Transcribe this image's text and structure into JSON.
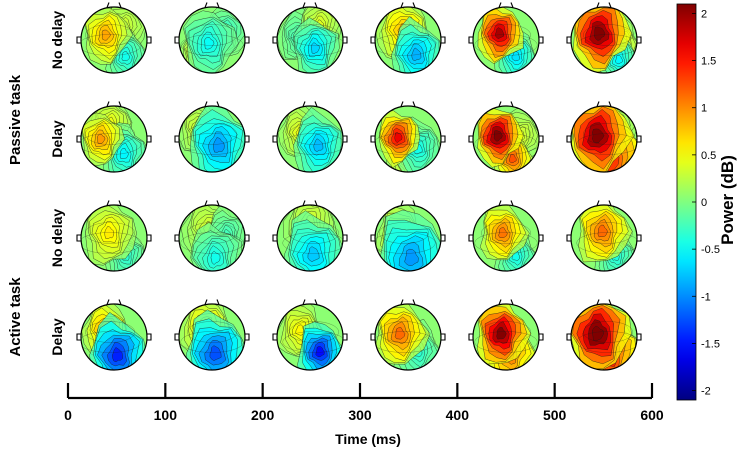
{
  "chart_data": {
    "type": "heatmap",
    "subtype": "scalp-topography-grid",
    "group_labels": [
      "Passive task",
      "Active task"
    ],
    "row_labels": [
      "No delay",
      "Delay",
      "No delay",
      "Delay"
    ],
    "row_groups": [
      0,
      0,
      1,
      1
    ],
    "time_windows_ms": [
      [
        0,
        100
      ],
      [
        100,
        200
      ],
      [
        200,
        300
      ],
      [
        300,
        400
      ],
      [
        400,
        500
      ],
      [
        500,
        600
      ]
    ],
    "time_axis": {
      "label": "Time (ms)",
      "ticks": [
        0,
        100,
        200,
        300,
        400,
        500,
        600
      ],
      "tick_labels": [
        "0",
        "100",
        "200",
        "300",
        "400",
        "500",
        "600"
      ],
      "range": [
        0,
        600
      ]
    },
    "colorbar": {
      "label": "Power (dB)",
      "range": [
        -2.1,
        2.1
      ],
      "ticks": [
        2,
        1.5,
        1,
        0.5,
        0,
        -0.5,
        -1,
        -1.5,
        -2
      ],
      "tick_labels": [
        "2",
        "1.5",
        "1",
        "0.5",
        "0",
        "-0.5",
        "-1",
        "-1.5",
        "-2"
      ],
      "colormap": "jet"
    },
    "maps": [
      [
        {
          "blobs": [
            {
              "u": -0.25,
              "v": -0.15,
              "s": 0.22,
              "a": 0.85
            },
            {
              "u": 0.35,
              "v": 0.5,
              "s": 0.2,
              "a": -0.5
            },
            {
              "u": 0.3,
              "v": -0.4,
              "s": 0.2,
              "a": 0.3
            }
          ]
        },
        {
          "blobs": [
            {
              "u": -0.1,
              "v": 0.1,
              "s": 0.25,
              "a": -0.55
            },
            {
              "u": 0.4,
              "v": -0.2,
              "s": 0.2,
              "a": -0.4
            },
            {
              "u": -0.4,
              "v": 0.5,
              "s": 0.2,
              "a": 0.35
            }
          ]
        },
        {
          "blobs": [
            {
              "u": 0.15,
              "v": 0.25,
              "s": 0.22,
              "a": -0.75
            },
            {
              "u": -0.35,
              "v": -0.1,
              "s": 0.2,
              "a": -0.3
            },
            {
              "u": 0.3,
              "v": -0.45,
              "s": 0.2,
              "a": 0.35
            }
          ]
        },
        {
          "blobs": [
            {
              "u": -0.15,
              "v": -0.3,
              "s": 0.25,
              "a": 0.75
            },
            {
              "u": 0.25,
              "v": 0.45,
              "s": 0.25,
              "a": -0.9
            }
          ]
        },
        {
          "blobs": [
            {
              "u": -0.2,
              "v": -0.2,
              "s": 0.22,
              "a": 1.9
            },
            {
              "u": 0.3,
              "v": 0.5,
              "s": 0.2,
              "a": -0.7
            }
          ]
        },
        {
          "blobs": [
            {
              "u": -0.15,
              "v": -0.2,
              "s": 0.28,
              "a": 2.2
            },
            {
              "u": 0.45,
              "v": 0.15,
              "s": 0.2,
              "a": 0.45
            },
            {
              "u": 0.45,
              "v": 0.6,
              "s": 0.18,
              "a": -0.6
            }
          ]
        }
      ],
      [
        {
          "blobs": [
            {
              "u": -0.4,
              "v": 0.0,
              "s": 0.2,
              "a": 0.9
            },
            {
              "u": -0.1,
              "v": -0.5,
              "s": 0.2,
              "a": 0.4
            },
            {
              "u": 0.3,
              "v": 0.45,
              "s": 0.22,
              "a": -0.6
            }
          ]
        },
        {
          "blobs": [
            {
              "u": 0.2,
              "v": 0.2,
              "s": 0.3,
              "a": -1.0
            },
            {
              "u": -0.4,
              "v": -0.35,
              "s": 0.2,
              "a": 0.3
            }
          ]
        },
        {
          "blobs": [
            {
              "u": 0.25,
              "v": 0.2,
              "s": 0.25,
              "a": -0.85
            },
            {
              "u": -0.3,
              "v": -0.2,
              "s": 0.2,
              "a": 0.4
            }
          ]
        },
        {
          "blobs": [
            {
              "u": -0.3,
              "v": -0.05,
              "s": 0.2,
              "a": 1.6
            },
            {
              "u": 0.3,
              "v": 0.3,
              "s": 0.22,
              "a": -0.5
            },
            {
              "u": 0.0,
              "v": 0.65,
              "s": 0.2,
              "a": 0.4
            }
          ]
        },
        {
          "blobs": [
            {
              "u": -0.25,
              "v": -0.1,
              "s": 0.22,
              "a": 2.2
            },
            {
              "u": 0.2,
              "v": 0.6,
              "s": 0.18,
              "a": 1.2
            },
            {
              "u": 0.45,
              "v": -0.1,
              "s": 0.2,
              "a": 0.3
            }
          ]
        },
        {
          "blobs": [
            {
              "u": -0.2,
              "v": -0.1,
              "s": 0.3,
              "a": 2.2
            },
            {
              "u": 0.1,
              "v": 0.55,
              "s": 0.35,
              "a": 1.5
            },
            {
              "u": 0.4,
              "v": -0.4,
              "s": 0.2,
              "a": 0.2
            }
          ]
        }
      ],
      [
        {
          "blobs": [
            {
              "u": -0.15,
              "v": -0.15,
              "s": 0.25,
              "a": 0.55
            },
            {
              "u": 0.35,
              "v": 0.55,
              "s": 0.2,
              "a": -0.4
            }
          ]
        },
        {
          "blobs": [
            {
              "u": -0.1,
              "v": -0.3,
              "s": 0.25,
              "a": 0.3
            },
            {
              "u": 0.1,
              "v": 0.6,
              "s": 0.25,
              "a": -0.5
            },
            {
              "u": 0.45,
              "v": -0.1,
              "s": 0.2,
              "a": -0.3
            }
          ]
        },
        {
          "blobs": [
            {
              "u": 0.0,
              "v": -0.5,
              "s": 0.25,
              "a": 0.3
            },
            {
              "u": 0.1,
              "v": 0.5,
              "s": 0.3,
              "a": -0.8
            }
          ]
        },
        {
          "blobs": [
            {
              "u": -0.25,
              "v": -0.15,
              "s": 0.22,
              "a": 0.5
            },
            {
              "u": 0.1,
              "v": 0.6,
              "s": 0.35,
              "a": -1.0
            }
          ]
        },
        {
          "blobs": [
            {
              "u": -0.1,
              "v": -0.15,
              "s": 0.22,
              "a": 1.05
            },
            {
              "u": 0.3,
              "v": 0.55,
              "s": 0.2,
              "a": -0.5
            }
          ]
        },
        {
          "blobs": [
            {
              "u": -0.05,
              "v": -0.2,
              "s": 0.25,
              "a": 1.1
            },
            {
              "u": 0.35,
              "v": 0.55,
              "s": 0.2,
              "a": -0.45
            }
          ]
        }
      ],
      [
        {
          "blobs": [
            {
              "u": -0.25,
              "v": -0.2,
              "s": 0.22,
              "a": 0.9
            },
            {
              "u": 0.1,
              "v": 0.55,
              "s": 0.28,
              "a": -1.5
            }
          ]
        },
        {
          "blobs": [
            {
              "u": -0.2,
              "v": -0.3,
              "s": 0.25,
              "a": 0.6
            },
            {
              "u": 0.1,
              "v": 0.5,
              "s": 0.3,
              "a": -1.3
            }
          ]
        },
        {
          "blobs": [
            {
              "u": -0.3,
              "v": -0.2,
              "s": 0.22,
              "a": 0.5
            },
            {
              "u": 0.3,
              "v": 0.45,
              "s": 0.22,
              "a": -1.6
            }
          ]
        },
        {
          "blobs": [
            {
              "u": -0.25,
              "v": -0.1,
              "s": 0.25,
              "a": 1.1
            },
            {
              "u": 0.3,
              "v": 0.45,
              "s": 0.22,
              "a": -0.4
            }
          ]
        },
        {
          "blobs": [
            {
              "u": -0.15,
              "v": -0.1,
              "s": 0.25,
              "a": 2.1
            },
            {
              "u": 0.1,
              "v": 0.5,
              "s": 0.25,
              "a": 1.1
            }
          ]
        },
        {
          "blobs": [
            {
              "u": -0.2,
              "v": -0.1,
              "s": 0.3,
              "a": 2.3
            },
            {
              "u": 0.1,
              "v": 0.55,
              "s": 0.3,
              "a": 1.6
            },
            {
              "u": 0.45,
              "v": 0.4,
              "s": 0.2,
              "a": 0.7
            }
          ]
        }
      ]
    ]
  }
}
